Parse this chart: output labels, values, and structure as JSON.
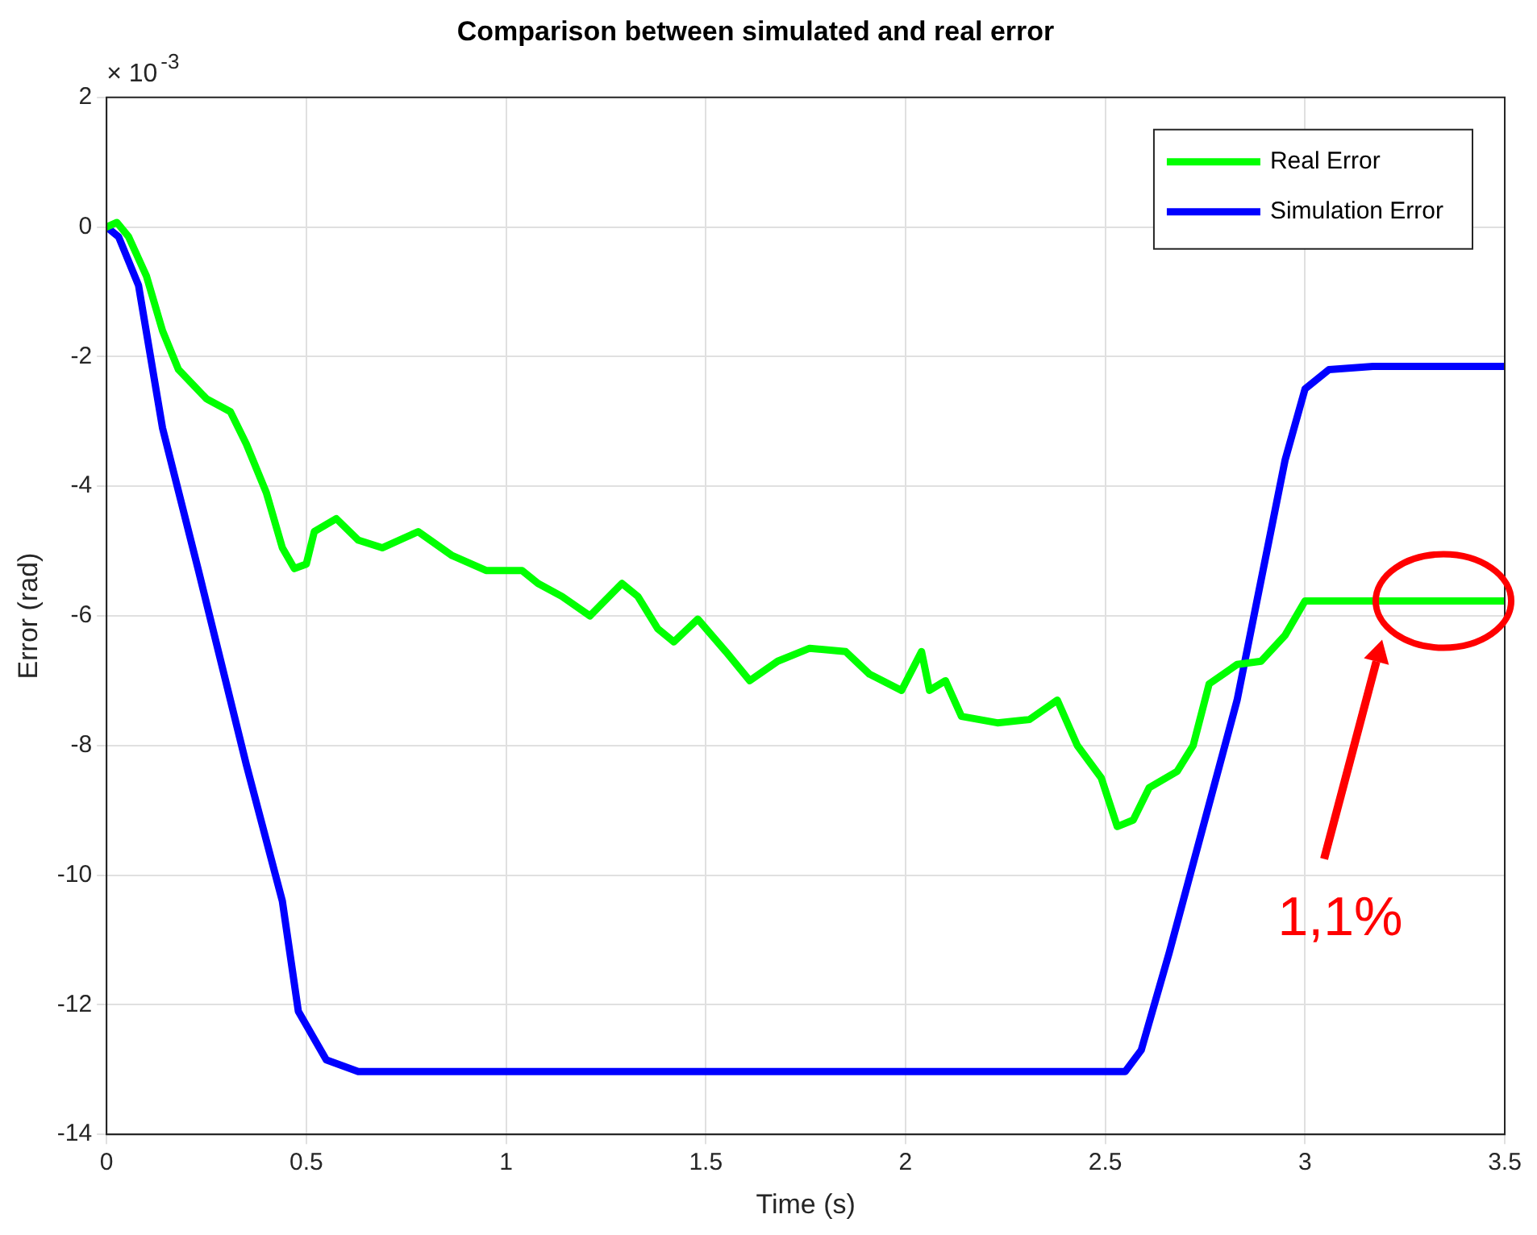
{
  "chart_data": {
    "type": "line",
    "title": "Comparison between simulated and real error",
    "xlabel": "Time (s)",
    "ylabel": "Error (rad)",
    "xlim": [
      0,
      3.5
    ],
    "xticks": [
      0,
      0.5,
      1,
      1.5,
      2,
      2.5,
      3,
      3.5
    ],
    "ylim": [
      -14,
      2
    ],
    "yticks": [
      -14,
      -12,
      -10,
      -8,
      -6,
      -4,
      -2,
      0,
      2
    ],
    "grid": true,
    "legend": "top right",
    "marker": "none",
    "line_style": "solid",
    "annotations": [
      "× 10$^{-3}$",
      "1,1%"
    ],
    "series": [
      {
        "name": "Real Error",
        "color": "#00ff00",
        "x": [
          0,
          0.026,
          0.055,
          0.1,
          0.14,
          0.18,
          0.25,
          0.31,
          0.35,
          0.4,
          0.44,
          0.47,
          0.5,
          0.52,
          0.575,
          0.63,
          0.69,
          0.78,
          0.865,
          0.95,
          1.04,
          1.08,
          1.14,
          1.21,
          1.29,
          1.33,
          1.38,
          1.42,
          1.48,
          1.55,
          1.61,
          1.68,
          1.76,
          1.85,
          1.91,
          1.99,
          2.04,
          2.06,
          2.1,
          2.14,
          2.23,
          2.31,
          2.38,
          2.43,
          2.49,
          2.53,
          2.57,
          2.61,
          2.68,
          2.72,
          2.76,
          2.83,
          2.89,
          2.95,
          3.0,
          3.5
        ],
        "values": [
          0,
          0.07,
          -0.15,
          -0.76,
          -1.6,
          -2.2,
          -2.65,
          -2.85,
          -3.35,
          -4.1,
          -4.95,
          -5.27,
          -5.2,
          -4.7,
          -4.5,
          -4.83,
          -4.95,
          -4.7,
          -5.07,
          -5.3,
          -5.3,
          -5.5,
          -5.7,
          -6.0,
          -5.5,
          -5.7,
          -6.2,
          -6.4,
          -6.05,
          -6.55,
          -7.0,
          -6.7,
          -6.5,
          -6.55,
          -6.9,
          -7.15,
          -6.55,
          -7.15,
          -7.0,
          -7.55,
          -7.65,
          -7.6,
          -7.3,
          -8.0,
          -8.5,
          -9.25,
          -9.15,
          -8.65,
          -8.4,
          -8.0,
          -7.05,
          -6.75,
          -6.7,
          -6.3,
          -5.77,
          -5.77
        ]
      },
      {
        "name": "Simulation Error",
        "color": "#0000ff",
        "x": [
          0,
          0.03,
          0.08,
          0.14,
          0.23,
          0.35,
          0.44,
          0.48,
          0.55,
          0.63,
          2.55,
          2.59,
          2.66,
          2.83,
          2.95,
          3.0,
          3.06,
          3.17,
          3.5
        ],
        "values": [
          0,
          -0.15,
          -0.9,
          -3.1,
          -5.3,
          -8.3,
          -10.4,
          -12.1,
          -12.85,
          -13.03,
          -13.03,
          -12.7,
          -11.2,
          -7.3,
          -3.6,
          -2.5,
          -2.2,
          -2.15,
          -2.15
        ]
      }
    ]
  }
}
